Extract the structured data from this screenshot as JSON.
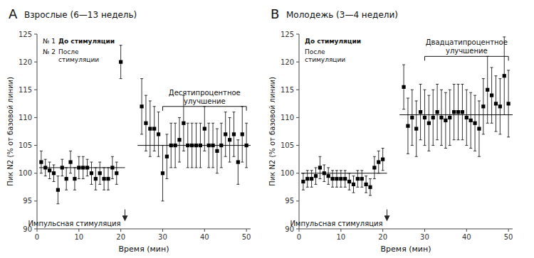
{
  "chart_data": [
    {
      "type": "scatter",
      "panel_label": "A",
      "title": "Взрослые (6—13 недель)",
      "x_label": "Время (мин)",
      "y_label": "Пик N2 (% от базовой линии)",
      "xlim": [
        0,
        51
      ],
      "ylim": [
        90,
        125
      ],
      "xticks": [
        0,
        10,
        20,
        30,
        40,
        50
      ],
      "yticks": [
        90,
        95,
        100,
        105,
        110,
        115,
        120,
        125
      ],
      "series": [
        {
          "color": "black",
          "marker": "square",
          "x": [
            1,
            2,
            3,
            4,
            5,
            6,
            7,
            8,
            9,
            10,
            11,
            12,
            13,
            14,
            15,
            16,
            17,
            18,
            19,
            20
          ],
          "values": [
            102,
            101,
            100.5,
            100,
            97,
            101,
            99,
            102,
            99,
            101,
            101,
            101,
            100,
            99,
            100,
            99,
            99,
            101,
            100,
            120
          ],
          "errors": [
            2,
            1.5,
            1.5,
            1.5,
            2.5,
            1.5,
            2,
            2,
            2,
            2,
            2,
            1.5,
            2,
            2,
            2,
            2,
            2,
            2,
            2,
            3
          ]
        },
        {
          "color": "black",
          "marker": "square",
          "x": [
            25,
            26,
            27,
            28,
            29,
            30,
            31,
            32,
            33,
            34,
            35,
            36,
            37,
            38,
            39,
            40,
            41,
            42,
            43,
            44,
            45,
            46,
            47,
            48,
            49,
            50
          ],
          "values": [
            112,
            109,
            108,
            108,
            107,
            100,
            103,
            105,
            105,
            106,
            109,
            105,
            105,
            105,
            105,
            108,
            105,
            105,
            104,
            105,
            107,
            106,
            107,
            102,
            107,
            105
          ],
          "errors": [
            5,
            5,
            5,
            4,
            4,
            5,
            4,
            4,
            4,
            4,
            5,
            4,
            4,
            4,
            4,
            4,
            4,
            4,
            4,
            4,
            4,
            4,
            4,
            4,
            5,
            4
          ]
        }
      ],
      "baselines": [
        {
          "value": 101,
          "x": [
            0.5,
            21
          ]
        },
        {
          "value": 105,
          "x": [
            24,
            51
          ]
        }
      ],
      "bracket": {
        "x": [
          30,
          50
        ],
        "y": 112
      },
      "annotation": "Десятипроцентное\nулучшение",
      "stimulus": {
        "label": "Импульсная стимуляция",
        "x": 21,
        "y": [
          93.5,
          91.5
        ]
      },
      "inset_labels": [
        {
          "number": "№ 1",
          "text": "До стимуляции"
        },
        {
          "number": "№ 2",
          "text": "После\nстимуляции"
        }
      ]
    },
    {
      "type": "scatter",
      "panel_label": "B",
      "title": "Молодежь (3—4 недели)",
      "x_label": "Время (мин)",
      "y_label": "Пик N2 (% от базовой линии)",
      "xlim": [
        0,
        51
      ],
      "ylim": [
        90,
        125
      ],
      "xticks": [
        0,
        10,
        20,
        30,
        40,
        50
      ],
      "yticks": [
        90,
        95,
        100,
        105,
        110,
        115,
        120,
        125
      ],
      "series": [
        {
          "color": "black",
          "marker": "square",
          "x": [
            1,
            2,
            3,
            4,
            5,
            6,
            7,
            8,
            9,
            10,
            11,
            12,
            13,
            14,
            15,
            16,
            17,
            18,
            19,
            20
          ],
          "values": [
            98.5,
            99,
            99,
            99.5,
            101,
            100,
            99.5,
            99,
            99,
            99,
            99,
            98.5,
            98,
            99,
            99,
            98,
            97.5,
            101,
            102,
            102.5
          ],
          "errors": [
            1.5,
            1.5,
            1.5,
            1.5,
            2,
            1.5,
            1.5,
            1.5,
            1.5,
            1.5,
            1.5,
            1.5,
            1.5,
            1.5,
            1.5,
            1.5,
            1.5,
            2,
            2,
            2
          ]
        },
        {
          "color": "black",
          "marker": "square",
          "x": [
            25,
            26,
            27,
            28,
            29,
            30,
            31,
            32,
            33,
            34,
            35,
            36,
            37,
            38,
            39,
            40,
            41,
            42,
            43,
            44,
            45,
            46,
            47,
            48,
            49,
            50
          ],
          "values": [
            115.5,
            108.5,
            110,
            108,
            111,
            110,
            109,
            110,
            111,
            110,
            109.5,
            110,
            111,
            111,
            111,
            110,
            109.5,
            109,
            108,
            112,
            115,
            114,
            112.5,
            112,
            117.5,
            112.5
          ],
          "errors": [
            4,
            5,
            5,
            5,
            5,
            5,
            5,
            5,
            5,
            5,
            5,
            5,
            5,
            5,
            5,
            5,
            5,
            5,
            5,
            5,
            6,
            5,
            5,
            5,
            7,
            6
          ]
        }
      ],
      "baselines": [
        {
          "value": 100,
          "x": [
            0.5,
            21
          ]
        },
        {
          "value": 110.5,
          "x": [
            24,
            51
          ]
        }
      ],
      "bracket": {
        "x": [
          30,
          50
        ],
        "y": 121
      },
      "annotation": "Двадцатипроцентное\nулучшение",
      "stimulus": {
        "label": "Импульсная стимуляция",
        "x": 21,
        "y": [
          93.5,
          91.5
        ]
      },
      "inset_labels": [
        {
          "text": "До стимуляции"
        },
        {
          "text": "После\nстимуляции"
        }
      ]
    }
  ]
}
